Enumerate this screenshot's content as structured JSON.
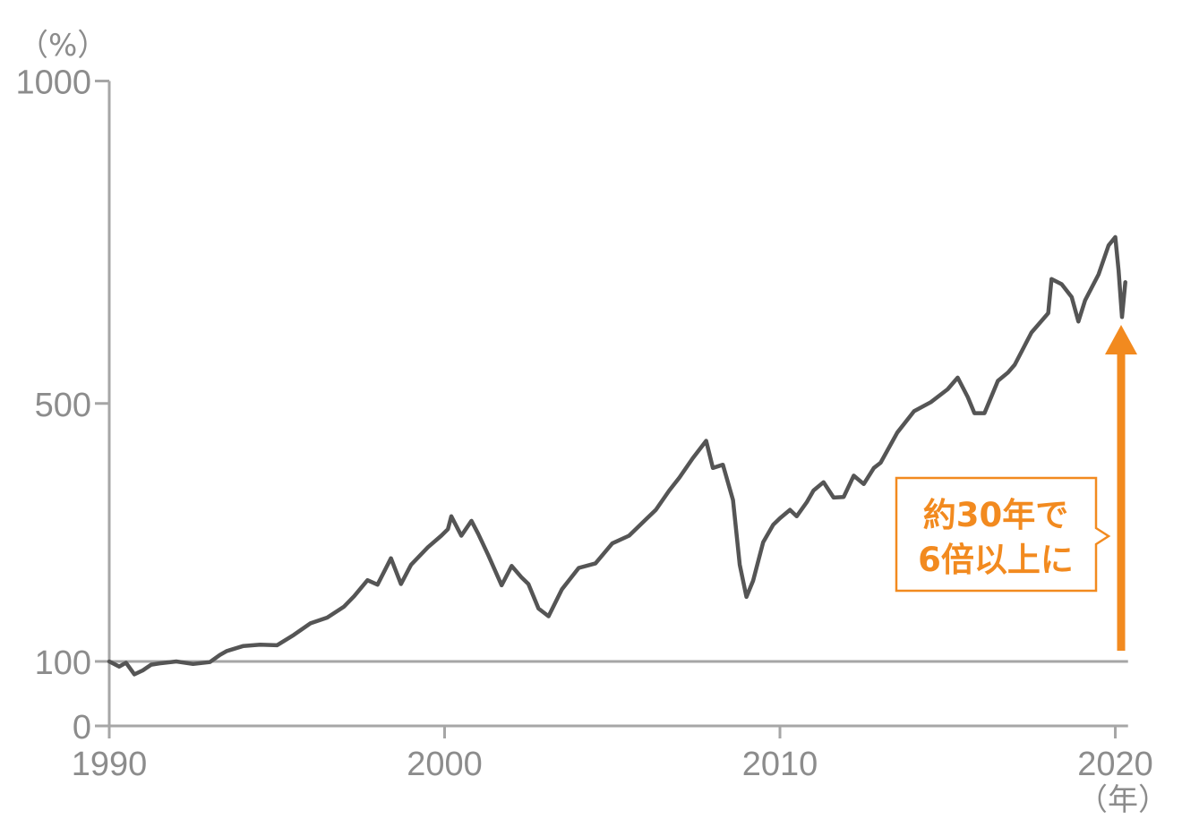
{
  "chart_data": {
    "type": "line",
    "title": "",
    "xlabel": "",
    "ylabel": "",
    "y_unit_label": "（%）",
    "x_unit_label": "（年）",
    "xlim": [
      1990,
      2020.3
    ],
    "ylim": [
      0,
      1000
    ],
    "x_ticks": [
      1990,
      2000,
      2010,
      2020
    ],
    "x_tick_labels": [
      "1990",
      "2000",
      "2010",
      "2020"
    ],
    "y_ticks": [
      0,
      100,
      500,
      1000
    ],
    "y_tick_labels": [
      "0",
      "100",
      "500",
      "1000"
    ],
    "reference_line": 100,
    "grid": false,
    "colors": {
      "line": "#555555",
      "axis": "#a6a6a6",
      "accent": "#f28a1f"
    },
    "series": [
      {
        "name": "",
        "points": [
          [
            1990.0,
            100
          ],
          [
            1990.3,
            92
          ],
          [
            1990.5,
            98
          ],
          [
            1990.75,
            80
          ],
          [
            1991.0,
            86
          ],
          [
            1991.25,
            95
          ],
          [
            1991.5,
            97
          ],
          [
            1992.0,
            100
          ],
          [
            1992.5,
            96
          ],
          [
            1993.0,
            99
          ],
          [
            1993.3,
            110
          ],
          [
            1993.5,
            116
          ],
          [
            1994.0,
            124
          ],
          [
            1994.5,
            126
          ],
          [
            1995.0,
            125
          ],
          [
            1995.5,
            141
          ],
          [
            1996.0,
            159
          ],
          [
            1996.5,
            168
          ],
          [
            1997.0,
            185
          ],
          [
            1997.3,
            201
          ],
          [
            1997.7,
            226
          ],
          [
            1998.0,
            219
          ],
          [
            1998.4,
            260
          ],
          [
            1998.7,
            220
          ],
          [
            1999.0,
            250
          ],
          [
            1999.5,
            277
          ],
          [
            1999.9,
            295
          ],
          [
            2000.1,
            305
          ],
          [
            2000.2,
            325
          ],
          [
            2000.5,
            295
          ],
          [
            2000.8,
            318
          ],
          [
            2001.0,
            298
          ],
          [
            2001.3,
            265
          ],
          [
            2001.7,
            218
          ],
          [
            2002.0,
            248
          ],
          [
            2002.3,
            230
          ],
          [
            2002.5,
            220
          ],
          [
            2002.8,
            182
          ],
          [
            2003.1,
            170
          ],
          [
            2003.5,
            212
          ],
          [
            2004.0,
            245
          ],
          [
            2004.5,
            252
          ],
          [
            2005.0,
            283
          ],
          [
            2005.5,
            295
          ],
          [
            2006.0,
            320
          ],
          [
            2006.3,
            335
          ],
          [
            2006.7,
            365
          ],
          [
            2007.0,
            385
          ],
          [
            2007.4,
            415
          ],
          [
            2007.8,
            442
          ],
          [
            2008.0,
            400
          ],
          [
            2008.3,
            405
          ],
          [
            2008.6,
            350
          ],
          [
            2008.8,
            250
          ],
          [
            2009.0,
            200
          ],
          [
            2009.2,
            225
          ],
          [
            2009.5,
            285
          ],
          [
            2009.8,
            312
          ],
          [
            2010.0,
            322
          ],
          [
            2010.3,
            335
          ],
          [
            2010.5,
            325
          ],
          [
            2010.8,
            347
          ],
          [
            2011.0,
            365
          ],
          [
            2011.3,
            378
          ],
          [
            2011.6,
            354
          ],
          [
            2011.9,
            355
          ],
          [
            2012.2,
            388
          ],
          [
            2012.5,
            375
          ],
          [
            2012.8,
            400
          ],
          [
            2013.0,
            408
          ],
          [
            2013.5,
            455
          ],
          [
            2014.0,
            488
          ],
          [
            2014.5,
            502
          ],
          [
            2015.0,
            522
          ],
          [
            2015.3,
            540
          ],
          [
            2015.6,
            510
          ],
          [
            2015.8,
            485
          ],
          [
            2016.1,
            485
          ],
          [
            2016.5,
            535
          ],
          [
            2016.8,
            548
          ],
          [
            2017.0,
            560
          ],
          [
            2017.5,
            610
          ],
          [
            2018.0,
            640
          ],
          [
            2018.1,
            693
          ],
          [
            2018.4,
            685
          ],
          [
            2018.7,
            665
          ],
          [
            2018.9,
            627
          ],
          [
            2019.1,
            660
          ],
          [
            2019.5,
            700
          ],
          [
            2019.8,
            745
          ],
          [
            2020.0,
            758
          ],
          [
            2020.1,
            706
          ],
          [
            2020.2,
            634
          ],
          [
            2020.3,
            688
          ]
        ]
      }
    ],
    "annotation": {
      "line1": "約30年で",
      "line2": "6倍以上に"
    }
  }
}
